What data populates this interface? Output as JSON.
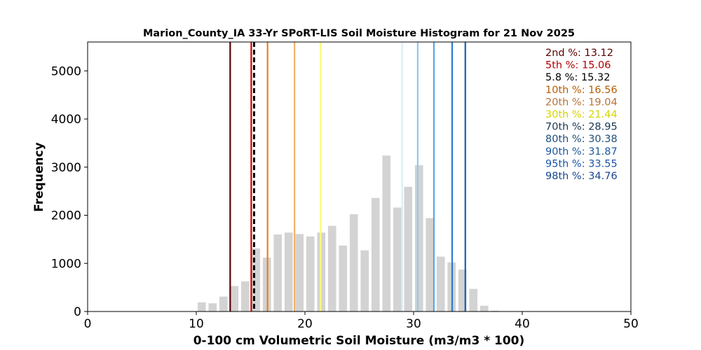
{
  "chart_data": {
    "type": "bar",
    "title": "Marion_County_IA 33-Yr SPoRT-LIS Soil Moisture Histogram for 21 Nov 2025",
    "xlabel": "0-100 cm Volumetric Soil Moisture (m3/m3 * 100)",
    "ylabel": "Frequency",
    "xlim": [
      0,
      50
    ],
    "ylim": [
      0,
      5600
    ],
    "xticks": [
      0,
      10,
      20,
      30,
      40,
      50
    ],
    "yticks": [
      0,
      1000,
      2000,
      3000,
      4000,
      5000
    ],
    "bar_color": "#d3d3d3",
    "bin_width": 1.0,
    "bins": [
      {
        "x": 10.5,
        "y": 190
      },
      {
        "x": 11.5,
        "y": 170
      },
      {
        "x": 12.5,
        "y": 310
      },
      {
        "x": 13.5,
        "y": 530
      },
      {
        "x": 14.5,
        "y": 625
      },
      {
        "x": 15.5,
        "y": 1310
      },
      {
        "x": 16.5,
        "y": 1120
      },
      {
        "x": 17.5,
        "y": 1600
      },
      {
        "x": 18.5,
        "y": 1640
      },
      {
        "x": 19.5,
        "y": 1610
      },
      {
        "x": 20.5,
        "y": 1560
      },
      {
        "x": 21.5,
        "y": 1640
      },
      {
        "x": 22.5,
        "y": 1780
      },
      {
        "x": 23.5,
        "y": 1370
      },
      {
        "x": 24.5,
        "y": 2020
      },
      {
        "x": 25.5,
        "y": 1270
      },
      {
        "x": 26.5,
        "y": 2360
      },
      {
        "x": 27.5,
        "y": 3240
      },
      {
        "x": 28.5,
        "y": 2160
      },
      {
        "x": 29.5,
        "y": 2590
      },
      {
        "x": 30.5,
        "y": 3040
      },
      {
        "x": 31.5,
        "y": 1940
      },
      {
        "x": 32.5,
        "y": 1140
      },
      {
        "x": 33.5,
        "y": 1020
      },
      {
        "x": 34.5,
        "y": 870
      },
      {
        "x": 35.5,
        "y": 470
      },
      {
        "x": 36.5,
        "y": 120
      },
      {
        "x": 37.5,
        "y": 15
      }
    ],
    "lines": [
      {
        "label": "2nd %",
        "value": 13.12,
        "value_text": "13.12",
        "color": "#5a0000",
        "dashed": false
      },
      {
        "label": "5th %",
        "value": 15.06,
        "value_text": "15.06",
        "color": "#d40000",
        "dashed": false
      },
      {
        "label": "5.8 %",
        "value": 15.32,
        "value_text": "15.32",
        "color": "#000000",
        "dashed": true
      },
      {
        "label": "10th %",
        "value": 16.56,
        "value_text": "16.56",
        "color": "#e8821c",
        "dashed": false
      },
      {
        "label": "20th %",
        "value": 19.04,
        "value_text": "19.04",
        "color": "#f4b06a",
        "dashed": false
      },
      {
        "label": "30th %",
        "value": 21.44,
        "value_text": "21.44",
        "color": "#fafa7a",
        "dashed": false
      },
      {
        "label": "70th %",
        "value": 28.95,
        "value_text": "28.95",
        "color": "#d9eef8",
        "dashed": false
      },
      {
        "label": "80th %",
        "value": 30.38,
        "value_text": "30.38",
        "color": "#8dcbea",
        "dashed": false
      },
      {
        "label": "90th %",
        "value": 31.87,
        "value_text": "31.87",
        "color": "#5aa6e4",
        "dashed": false
      },
      {
        "label": "95th %",
        "value": 33.55,
        "value_text": "33.55",
        "color": "#2a7bd2",
        "dashed": false
      },
      {
        "label": "98th %",
        "value": 34.76,
        "value_text": "34.76",
        "color": "#1a5fb4",
        "dashed": false
      }
    ],
    "legend_text_colors": [
      "#5a0000",
      "#b30000",
      "#000000",
      "#b85e00",
      "#b8733a",
      "#d4d400",
      "#193850",
      "#1f4e79",
      "#1d5a9e",
      "#1a55a8",
      "#17478f"
    ],
    "legend_placement": "top-right",
    "grid": false
  }
}
